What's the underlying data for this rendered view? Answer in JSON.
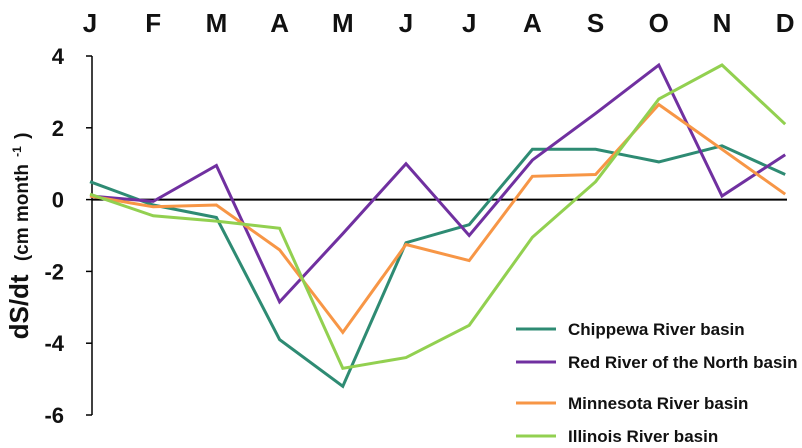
{
  "chart_data": {
    "type": "line",
    "title": "",
    "xlabel": "",
    "ylabel": "dS/dt",
    "ylabel_unit": "(cm month",
    "ylabel_unit_sup": "-1",
    "ylabel_unit_close": ")",
    "categories": [
      "J",
      "F",
      "M",
      "A",
      "M",
      "J",
      "J",
      "A",
      "S",
      "O",
      "N",
      "D"
    ],
    "ylim": [
      -6,
      4
    ],
    "yticks": [
      "4",
      "2",
      "0",
      "-2",
      "-4",
      "-6"
    ],
    "ytick_values": [
      4,
      2,
      0,
      -2,
      -4,
      -6
    ],
    "grid": false,
    "zero_line": true,
    "legend_position": "bottom-right",
    "series": [
      {
        "name": "Chippewa River basin",
        "color": "#2e8b73",
        "values": [
          0.5,
          -0.15,
          -0.5,
          -3.9,
          -5.2,
          -1.2,
          -0.7,
          1.4,
          1.4,
          1.05,
          1.5,
          0.7
        ]
      },
      {
        "name": "Red River of the North basin",
        "color": "#7030a0",
        "values": [
          0.1,
          -0.05,
          0.95,
          -2.85,
          -0.95,
          1.0,
          -1.0,
          1.1,
          2.4,
          3.75,
          0.1,
          1.25
        ]
      },
      {
        "name": "Minnesota River basin",
        "color": "#f79646",
        "values": [
          0.1,
          -0.2,
          -0.15,
          -1.4,
          -3.7,
          -1.25,
          -1.7,
          0.65,
          0.7,
          2.65,
          1.4,
          0.15
        ]
      },
      {
        "name": "Illinois River basin",
        "color": "#92d050",
        "values": [
          0.15,
          -0.45,
          -0.6,
          -0.8,
          -4.7,
          -4.4,
          -3.5,
          -1.05,
          0.5,
          2.8,
          3.75,
          2.1
        ]
      }
    ]
  }
}
